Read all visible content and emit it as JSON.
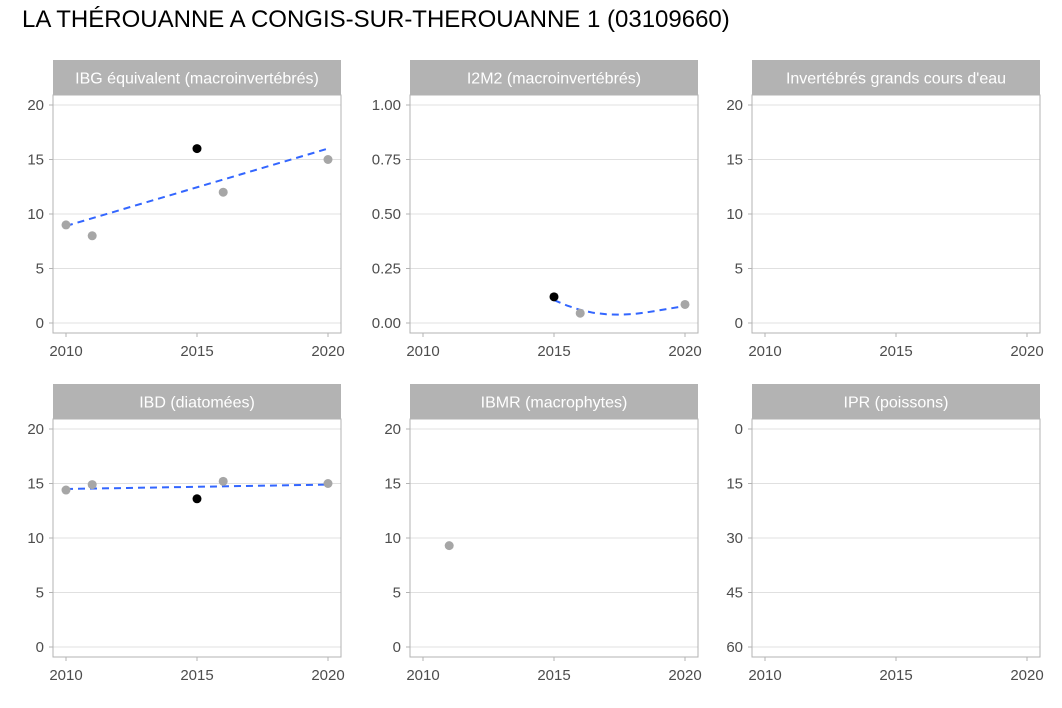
{
  "title": "LA THÉROUANNE A CONGIS-SUR-THEROUANNE 1 (03109660)",
  "colors": {
    "strip_background": "#b3b3b3",
    "strip_text": "#ffffff",
    "panel_border": "#b3b3b3",
    "gridline": "#e0e0e0",
    "point_past": "#a6a6a6",
    "point_highlight": "#000000",
    "trend_line": "#3366ff",
    "tick_text": "#4d4d4d"
  },
  "chart_data": [
    {
      "type": "scatter",
      "title": "IBG équivalent (macroinvertébrés)",
      "xlim": [
        2010,
        2020
      ],
      "ylim": [
        0,
        20
      ],
      "x_ticks": [
        "2010",
        "2015",
        "2020"
      ],
      "y_ticks": [
        "0",
        "5",
        "10",
        "15",
        "20"
      ],
      "reverse_y": false,
      "points": [
        {
          "x": 2010,
          "y": 9,
          "highlight": false
        },
        {
          "x": 2011,
          "y": 8,
          "highlight": false
        },
        {
          "x": 2015,
          "y": 16,
          "highlight": true
        },
        {
          "x": 2016,
          "y": 12,
          "highlight": false
        },
        {
          "x": 2020,
          "y": 15,
          "highlight": false
        }
      ],
      "trend": [
        {
          "x": 2010,
          "y": 8.9
        },
        {
          "x": 2020,
          "y": 16.0
        }
      ]
    },
    {
      "type": "scatter",
      "title": "I2M2 (macroinvertébrés)",
      "xlim": [
        2010,
        2020
      ],
      "ylim": [
        0,
        1
      ],
      "x_ticks": [
        "2010",
        "2015",
        "2020"
      ],
      "y_ticks": [
        "0.00",
        "0.25",
        "0.50",
        "0.75",
        "1.00"
      ],
      "reverse_y": false,
      "points": [
        {
          "x": 2015,
          "y": 0.12,
          "highlight": true
        },
        {
          "x": 2016,
          "y": 0.045,
          "highlight": false
        },
        {
          "x": 2020,
          "y": 0.085,
          "highlight": false
        }
      ],
      "trend": [
        {
          "x": 2015,
          "y": 0.105
        },
        {
          "x": 2015.5,
          "y": 0.08
        },
        {
          "x": 2016,
          "y": 0.06
        },
        {
          "x": 2016.5,
          "y": 0.047
        },
        {
          "x": 2017,
          "y": 0.04
        },
        {
          "x": 2017.5,
          "y": 0.038
        },
        {
          "x": 2018,
          "y": 0.041
        },
        {
          "x": 2018.5,
          "y": 0.048
        },
        {
          "x": 2019,
          "y": 0.058
        },
        {
          "x": 2019.5,
          "y": 0.068
        },
        {
          "x": 2020,
          "y": 0.078
        }
      ]
    },
    {
      "type": "scatter",
      "title": "Invertébrés grands cours d'eau",
      "xlim": [
        2010,
        2020
      ],
      "ylim": [
        0,
        20
      ],
      "x_ticks": [
        "2010",
        "2015",
        "2020"
      ],
      "y_ticks": [
        "0",
        "5",
        "10",
        "15",
        "20"
      ],
      "reverse_y": false,
      "points": [],
      "trend": []
    },
    {
      "type": "scatter",
      "title": "IBD (diatomées)",
      "xlim": [
        2010,
        2020
      ],
      "ylim": [
        0,
        20
      ],
      "x_ticks": [
        "2010",
        "2015",
        "2020"
      ],
      "y_ticks": [
        "0",
        "5",
        "10",
        "15",
        "20"
      ],
      "reverse_y": false,
      "points": [
        {
          "x": 2010,
          "y": 14.4,
          "highlight": false
        },
        {
          "x": 2011,
          "y": 14.9,
          "highlight": false
        },
        {
          "x": 2015,
          "y": 13.6,
          "highlight": true
        },
        {
          "x": 2016,
          "y": 15.2,
          "highlight": false
        },
        {
          "x": 2020,
          "y": 15.0,
          "highlight": false
        }
      ],
      "trend": [
        {
          "x": 2010,
          "y": 14.5
        },
        {
          "x": 2020,
          "y": 14.9
        }
      ]
    },
    {
      "type": "scatter",
      "title": "IBMR (macrophytes)",
      "xlim": [
        2010,
        2020
      ],
      "ylim": [
        0,
        20
      ],
      "x_ticks": [
        "2010",
        "2015",
        "2020"
      ],
      "y_ticks": [
        "0",
        "5",
        "10",
        "15",
        "20"
      ],
      "reverse_y": false,
      "points": [
        {
          "x": 2011,
          "y": 9.3,
          "highlight": false
        }
      ],
      "trend": []
    },
    {
      "type": "scatter",
      "title": "IPR (poissons)",
      "xlim": [
        2010,
        2020
      ],
      "ylim": [
        0,
        60
      ],
      "x_ticks": [
        "2010",
        "2015",
        "2020"
      ],
      "y_ticks": [
        "0",
        "15",
        "30",
        "45",
        "60"
      ],
      "reverse_y": true,
      "points": [],
      "trend": []
    }
  ]
}
